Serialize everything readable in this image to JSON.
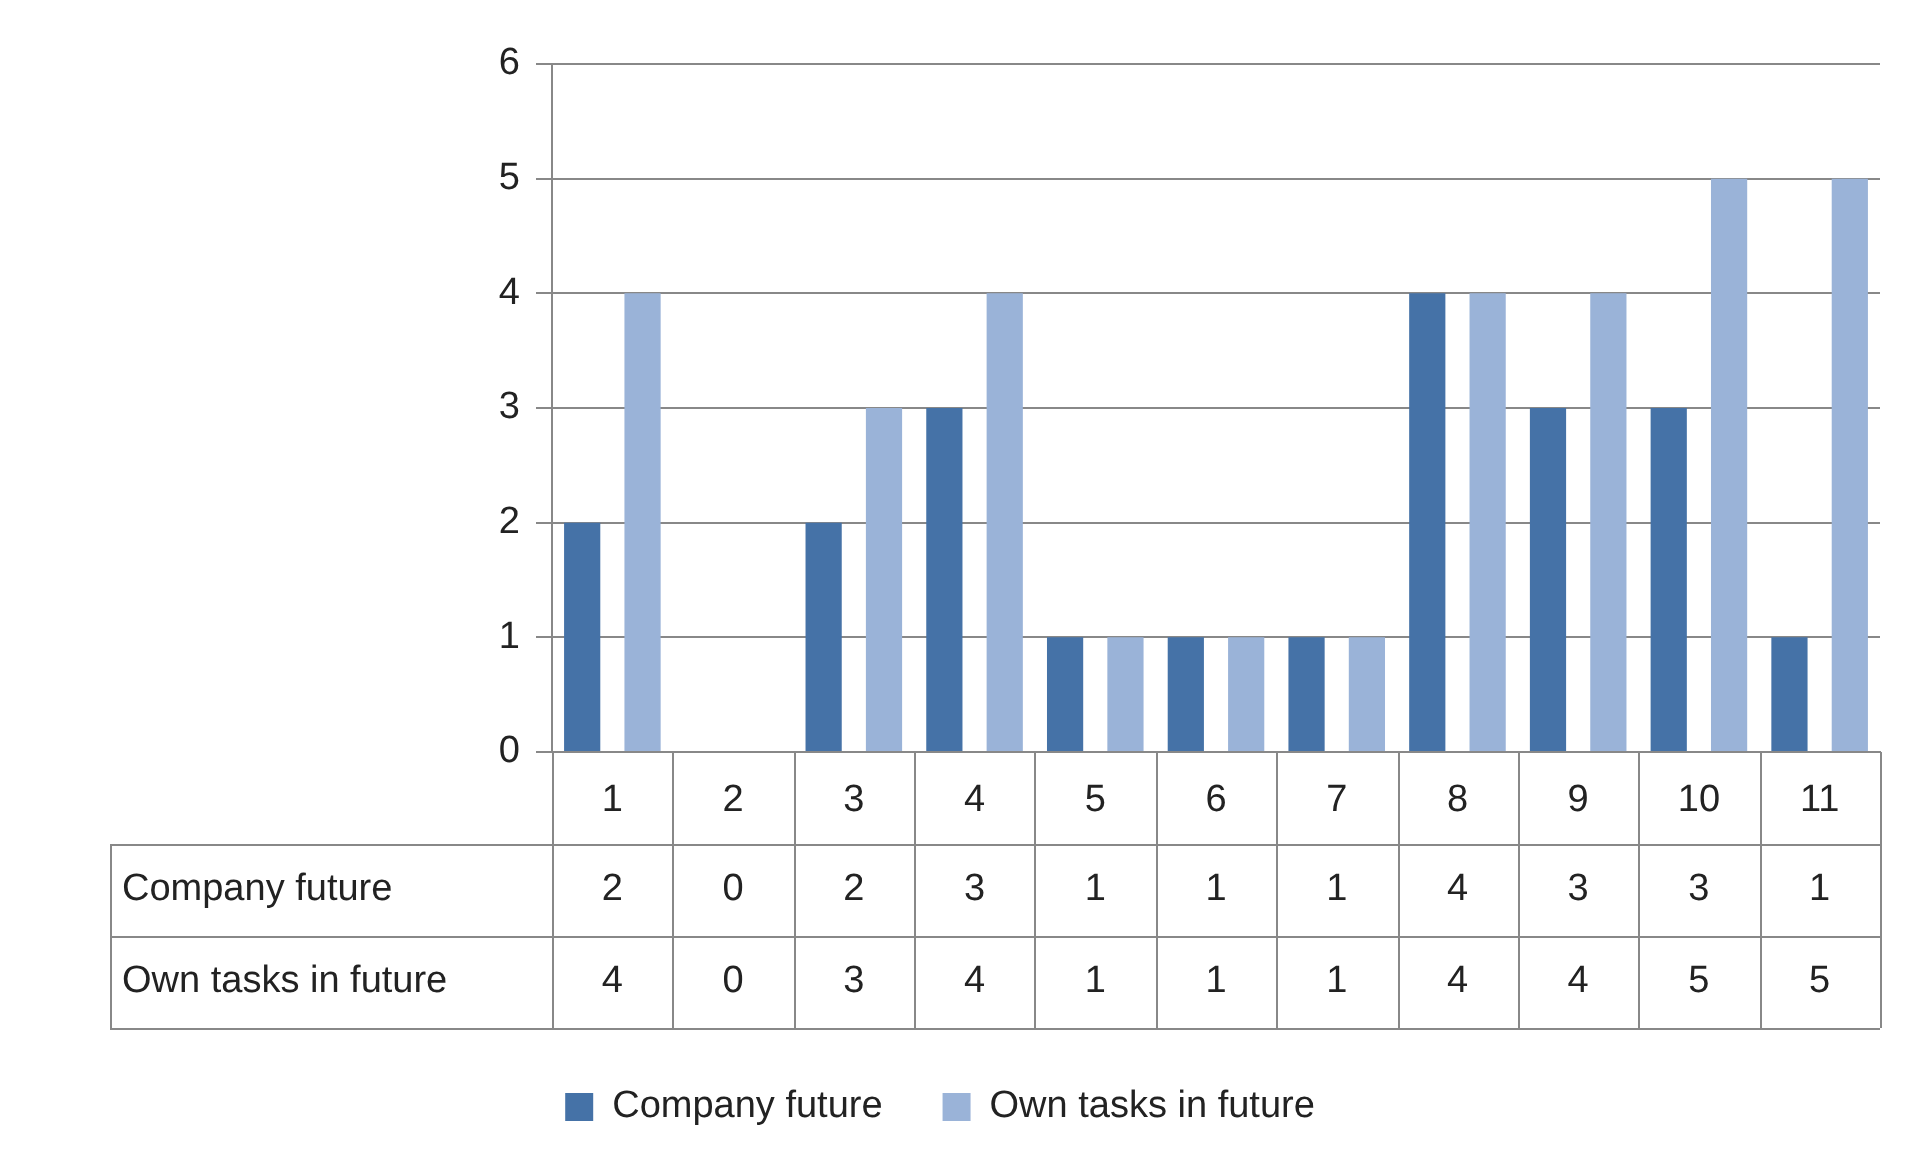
{
  "chart_data": {
    "type": "bar",
    "categories": [
      "1",
      "2",
      "3",
      "4",
      "5",
      "6",
      "7",
      "8",
      "9",
      "10",
      "11"
    ],
    "series": [
      {
        "name": "Company future",
        "color": "#4572a7",
        "values": [
          2,
          0,
          2,
          3,
          1,
          1,
          1,
          4,
          3,
          3,
          1
        ]
      },
      {
        "name": "Own tasks in future",
        "color": "#9ab3d8",
        "values": [
          4,
          0,
          3,
          4,
          1,
          1,
          1,
          4,
          4,
          5,
          5
        ]
      }
    ],
    "ylim": [
      0,
      6
    ],
    "yticks": [
      0,
      1,
      2,
      3,
      4,
      5,
      6
    ],
    "grid": "y",
    "legend": "bottom",
    "data_labels": true
  }
}
